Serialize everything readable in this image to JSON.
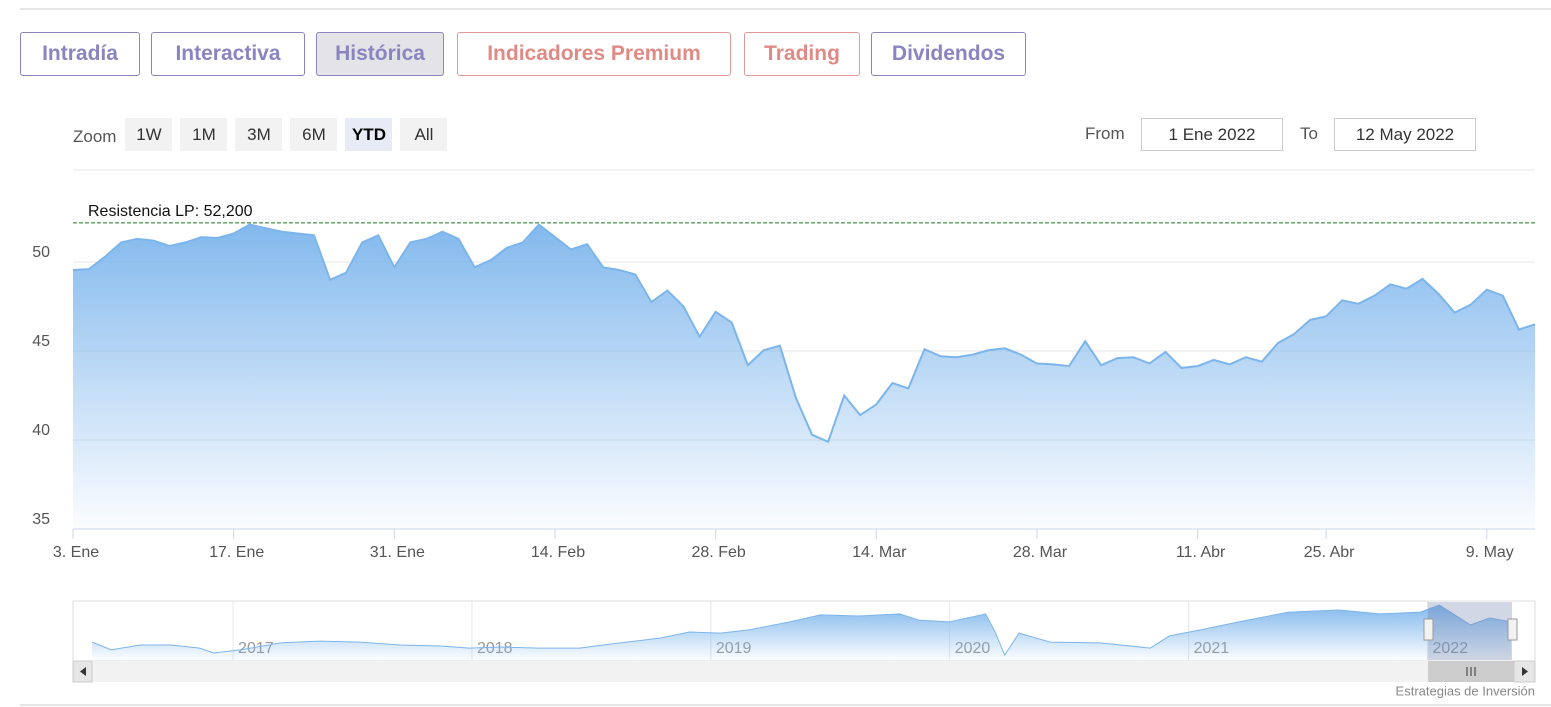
{
  "tabs": [
    "Intradía",
    "Interactiva",
    "Histórica",
    "Indicadores Premium",
    "Trading",
    "Dividendos"
  ],
  "zoom": {
    "label": "Zoom",
    "buttons": [
      "1W",
      "1M",
      "3M",
      "6M",
      "YTD",
      "All"
    ]
  },
  "range": {
    "from_label": "From",
    "from": "1 Ene 2022",
    "to_label": "To",
    "to": "12 May 2022"
  },
  "chart_data": {
    "type": "area",
    "color": "#7cb5ec",
    "values": [
      49.55,
      49.6,
      50.3,
      51.1,
      51.3,
      51.2,
      50.9,
      51.1,
      51.4,
      51.35,
      51.6,
      52.1,
      51.9,
      51.7,
      51.6,
      51.5,
      49.0,
      49.4,
      51.1,
      51.5,
      49.7,
      51.1,
      51.3,
      51.7,
      51.3,
      49.7,
      50.1,
      50.8,
      51.1,
      52.1,
      51.4,
      50.7,
      51.0,
      49.7,
      49.55,
      49.3,
      47.75,
      48.4,
      47.5,
      45.8,
      47.2,
      46.6,
      44.2,
      45.05,
      45.3,
      42.35,
      40.3,
      39.9,
      42.5,
      41.4,
      42.0,
      43.2,
      42.9,
      45.1,
      44.7,
      44.65,
      44.8,
      45.05,
      45.15,
      44.8,
      44.3,
      44.25,
      44.15,
      45.55,
      44.2,
      44.6,
      44.65,
      44.3,
      44.95,
      44.05,
      44.15,
      44.5,
      44.25,
      44.65,
      44.4,
      45.45,
      45.95,
      46.75,
      46.95,
      47.85,
      47.65,
      48.1,
      48.75,
      48.5,
      49.05,
      48.2,
      47.15,
      47.6,
      48.45,
      48.1,
      46.2,
      46.5
    ],
    "xlim": [
      0,
      91
    ],
    "xticks": [
      {
        "value": 0,
        "label": "3. Ene"
      },
      {
        "value": 10,
        "label": "17. Ene"
      },
      {
        "value": 20,
        "label": "31. Ene"
      },
      {
        "value": 30,
        "label": "14. Feb"
      },
      {
        "value": 40,
        "label": "28. Feb"
      },
      {
        "value": 50,
        "label": "14. Mar"
      },
      {
        "value": 60,
        "label": "28. Mar"
      },
      {
        "value": 70,
        "label": "11. Abr"
      },
      {
        "value": 78,
        "label": "25. Abr"
      },
      {
        "value": 88,
        "label": "9. May"
      }
    ],
    "ylim": [
      35,
      55
    ],
    "yticks": [
      35,
      40,
      45,
      50
    ],
    "grid": true,
    "plot_line": {
      "value": 52.2,
      "label": "Resistencia LP: 52,200",
      "color": "#1a7a1a"
    }
  },
  "navigator": {
    "type": "area",
    "color": "#7cb5ec",
    "x": [
      2016.41,
      2016.49,
      2016.61,
      2016.74,
      2016.86,
      2016.92,
      2017.03,
      2017.2,
      2017.36,
      2017.53,
      2017.7,
      2017.87,
      2017.99,
      2018.12,
      2018.28,
      2018.45,
      2018.62,
      2018.79,
      2018.91,
      2019.04,
      2019.16,
      2019.33,
      2019.46,
      2019.62,
      2019.79,
      2019.87,
      2020.0,
      2020.15,
      2020.19,
      2020.23,
      2020.29,
      2020.42,
      2020.63,
      2020.84,
      2020.92,
      2021.05,
      2021.21,
      2021.42,
      2021.63,
      2021.8,
      2021.97,
      2022.05,
      2022.18,
      2022.26,
      2022.35
    ],
    "values": [
      36.9,
      33.9,
      35.8,
      35.8,
      34.6,
      32.7,
      33.9,
      36.6,
      37.3,
      36.9,
      35.8,
      35.4,
      34.6,
      35.0,
      34.6,
      34.6,
      36.6,
      38.5,
      40.8,
      40.4,
      41.6,
      44.7,
      47.4,
      47.0,
      47.8,
      45.4,
      44.7,
      47.8,
      40.8,
      31.9,
      40.4,
      36.9,
      36.6,
      34.6,
      39.3,
      41.6,
      44.7,
      48.5,
      49.3,
      47.8,
      48.5,
      51.2,
      43.5,
      46.2,
      44.7
    ],
    "xlim": [
      2016.33,
      2022.45
    ],
    "ylim": [
      30,
      52
    ],
    "xticks": [
      2017,
      2018,
      2019,
      2020,
      2021,
      2022
    ]
  },
  "credits": "Estrategias de Inversión"
}
